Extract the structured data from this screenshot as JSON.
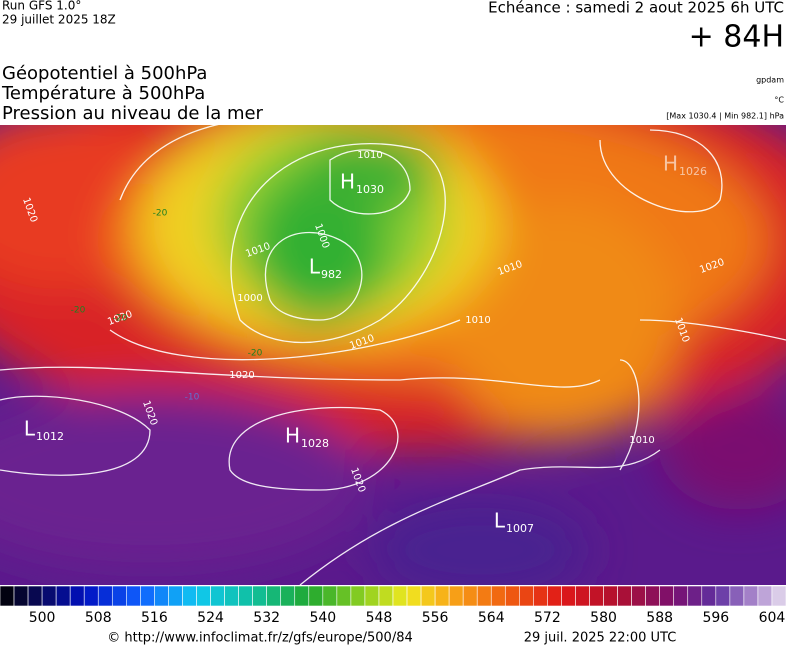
{
  "header": {
    "run": "Run GFS 1.0°",
    "date": "29 juillet 2025 18Z",
    "echeance": "Echéance : samedi 2 aout 2025 6h UTC",
    "lead": "+ 84H"
  },
  "titles": [
    "Géopotentiel à 500hPa",
    "Température à 500hPa",
    "Pression au niveau de la mer"
  ],
  "units": [
    "gpdam",
    "°C",
    "[Max 1030.4 | Min 982.1] hPa"
  ],
  "map": {
    "centers": [
      {
        "kind": "H",
        "value": 1030
      },
      {
        "kind": "L",
        "value": 982
      },
      {
        "kind": "L",
        "value": 1012
      },
      {
        "kind": "H",
        "value": 1028
      },
      {
        "kind": "L",
        "value": 1007
      },
      {
        "kind": "H",
        "value": 1026
      }
    ],
    "isobar_labels": [
      1010,
      1000,
      1010,
      1000,
      1010,
      1020,
      1020,
      1020,
      1010,
      1010,
      1020,
      1010,
      1010,
      1020,
      1020
    ],
    "temperature_labels": [
      -20,
      -20,
      -20,
      -20,
      -10
    ]
  },
  "colorbar": {
    "range": [
      494,
      606
    ],
    "step": 2,
    "stops": [
      [
        494,
        "#000000"
      ],
      [
        500,
        "#0a0a60"
      ],
      [
        506,
        "#0010c0"
      ],
      [
        514,
        "#1060ff"
      ],
      [
        522,
        "#10c8f0"
      ],
      [
        530,
        "#10c0a0"
      ],
      [
        538,
        "#20a830"
      ],
      [
        546,
        "#90d020"
      ],
      [
        552,
        "#f0e820"
      ],
      [
        558,
        "#f8a818"
      ],
      [
        566,
        "#f06010"
      ],
      [
        574,
        "#e01818"
      ],
      [
        582,
        "#b01030"
      ],
      [
        590,
        "#7a1070"
      ],
      [
        596,
        "#6030a0"
      ],
      [
        602,
        "#b090d0"
      ],
      [
        606,
        "#e8e0f0"
      ]
    ],
    "ticks": [
      500,
      508,
      516,
      524,
      532,
      540,
      548,
      556,
      564,
      572,
      580,
      588,
      596,
      604
    ]
  },
  "footer": {
    "url": "© http://www.infoclimat.fr/z/gfs/europe/500/84",
    "time": "29 juil. 2025 22:00 UTC"
  }
}
